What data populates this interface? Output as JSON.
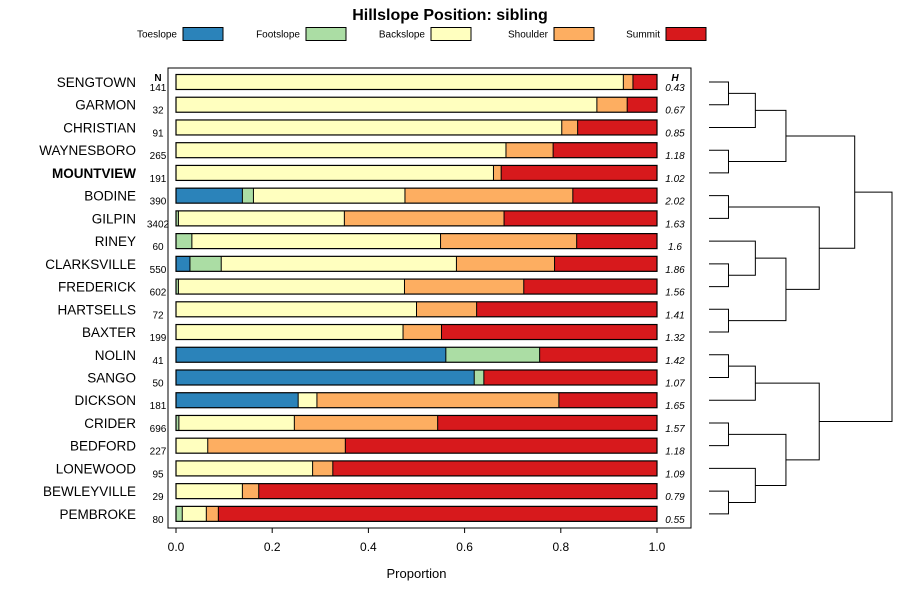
{
  "chart_data": {
    "type": "bar",
    "orientation": "horizontal",
    "stacked": true,
    "title": "Hillslope Position: sibling",
    "xlabel": "Proportion",
    "ylabel": "",
    "xlim": [
      0,
      1
    ],
    "x_ticks": [
      "0.0",
      "0.2",
      "0.4",
      "0.6",
      "0.8",
      "1.0"
    ],
    "n_header": "N",
    "h_header": "H",
    "legend_position": "top",
    "highlighted_category": "MOUNTVIEW",
    "legend": [
      {
        "name": "Toeslope",
        "color": "#2b83ba"
      },
      {
        "name": "Footslope",
        "color": "#abdda4"
      },
      {
        "name": "Backslope",
        "color": "#ffffbf"
      },
      {
        "name": "Shoulder",
        "color": "#fdae61"
      },
      {
        "name": "Summit",
        "color": "#d7191c"
      }
    ],
    "rows": [
      {
        "name": "SENGTOWN",
        "n": "141",
        "h": "0.43",
        "values": [
          0,
          0,
          0.93,
          0.02,
          0.05
        ]
      },
      {
        "name": "GARMON",
        "n": "32",
        "h": "0.67",
        "values": [
          0,
          0,
          0.875,
          0.063,
          0.062
        ]
      },
      {
        "name": "CHRISTIAN",
        "n": "91",
        "h": "0.85",
        "values": [
          0,
          0,
          0.802,
          0.033,
          0.165
        ]
      },
      {
        "name": "WAYNESBORO",
        "n": "265",
        "h": "1.18",
        "values": [
          0,
          0,
          0.686,
          0.098,
          0.216
        ]
      },
      {
        "name": "MOUNTVIEW",
        "n": "191",
        "h": "1.02",
        "values": [
          0,
          0,
          0.66,
          0.016,
          0.324
        ]
      },
      {
        "name": "BODINE",
        "n": "390",
        "h": "2.02",
        "values": [
          0.138,
          0.023,
          0.315,
          0.349,
          0.175
        ]
      },
      {
        "name": "GILPIN",
        "n": "3402",
        "h": "1.63",
        "values": [
          0,
          0.005,
          0.345,
          0.332,
          0.318
        ]
      },
      {
        "name": "RINEY",
        "n": "60",
        "h": "1.6",
        "values": [
          0,
          0.033,
          0.517,
          0.283,
          0.167
        ]
      },
      {
        "name": "CLARKSVILLE",
        "n": "550",
        "h": "1.86",
        "values": [
          0.029,
          0.065,
          0.489,
          0.204,
          0.213
        ]
      },
      {
        "name": "FREDERICK",
        "n": "602",
        "h": "1.56",
        "values": [
          0,
          0.005,
          0.47,
          0.248,
          0.277
        ]
      },
      {
        "name": "HARTSELLS",
        "n": "72",
        "h": "1.41",
        "values": [
          0,
          0,
          0.5,
          0.125,
          0.375
        ]
      },
      {
        "name": "BAXTER",
        "n": "199",
        "h": "1.32",
        "values": [
          0,
          0,
          0.472,
          0.08,
          0.448
        ]
      },
      {
        "name": "NOLIN",
        "n": "41",
        "h": "1.42",
        "values": [
          0.561,
          0.195,
          0,
          0,
          0.244
        ]
      },
      {
        "name": "SANGO",
        "n": "50",
        "h": "1.07",
        "values": [
          0.62,
          0.02,
          0,
          0,
          0.36
        ]
      },
      {
        "name": "DICKSON",
        "n": "181",
        "h": "1.65",
        "values": [
          0.254,
          0,
          0.039,
          0.503,
          0.204
        ]
      },
      {
        "name": "CRIDER",
        "n": "696",
        "h": "1.57",
        "values": [
          0,
          0.006,
          0.24,
          0.298,
          0.456
        ]
      },
      {
        "name": "BEDFORD",
        "n": "227",
        "h": "1.18",
        "values": [
          0,
          0,
          0.066,
          0.286,
          0.648
        ]
      },
      {
        "name": "LONEWOOD",
        "n": "95",
        "h": "1.09",
        "values": [
          0,
          0,
          0.284,
          0.042,
          0.674
        ]
      },
      {
        "name": "BEWLEYVILLE",
        "n": "29",
        "h": "0.79",
        "values": [
          0,
          0,
          0.138,
          0.034,
          0.828
        ]
      },
      {
        "name": "PEMBROKE",
        "n": "80",
        "h": "0.55",
        "values": [
          0,
          0.013,
          0.05,
          0.025,
          0.912
        ]
      }
    ],
    "dendrogram": [
      {
        "left": "SENGTOWN",
        "right": "GARMON"
      },
      {
        "left": "#1",
        "right": "CHRISTIAN"
      },
      {
        "left": "WAYNESBORO",
        "right": "MOUNTVIEW"
      },
      {
        "left": "#2",
        "right": "#3"
      },
      {
        "left": "BODINE",
        "right": "GILPIN"
      },
      {
        "left": "CLARKSVILLE",
        "right": "FREDERICK"
      },
      {
        "left": "RINEY",
        "right": "#6"
      },
      {
        "left": "HARTSELLS",
        "right": "BAXTER"
      },
      {
        "left": "#7",
        "right": "#8"
      },
      {
        "left": "#5",
        "right": "#9"
      },
      {
        "left": "#4",
        "right": "#10"
      },
      {
        "left": "NOLIN",
        "right": "SANGO"
      },
      {
        "left": "#12",
        "right": "DICKSON"
      },
      {
        "left": "CRIDER",
        "right": "BEDFORD"
      },
      {
        "left": "BEWLEYVILLE",
        "right": "PEMBROKE"
      },
      {
        "left": "LONEWOOD",
        "right": "#15"
      },
      {
        "left": "#14",
        "right": "#16"
      },
      {
        "left": "#13",
        "right": "#17"
      },
      {
        "left": "#11",
        "right": "#18"
      }
    ]
  }
}
